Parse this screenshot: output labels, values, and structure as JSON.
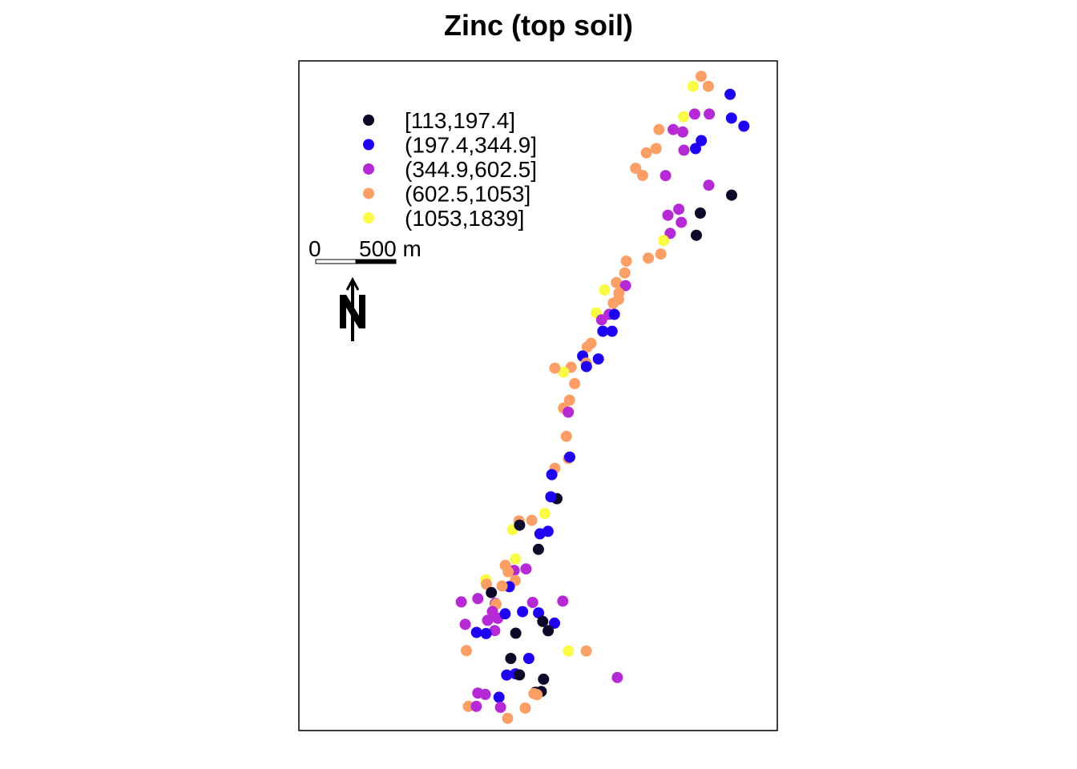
{
  "chart_data": {
    "type": "scatter",
    "title": "Zinc (top soil)",
    "xlim": [
      178460,
      181540
    ],
    "ylim": [
      329620,
      333660
    ],
    "grid": false,
    "legend_position": "top-left",
    "classes": [
      {
        "label": "[113,197.4]",
        "color": "#0d0829"
      },
      {
        "label": "(197.4,344.9]",
        "color": "#1f00f0"
      },
      {
        "label": "(344.9,602.5]",
        "color": "#b62ad6"
      },
      {
        "label": "(602.5,1053]",
        "color": "#fb9f66"
      },
      {
        "label": "(1053,1839]",
        "color": "#fafb45"
      }
    ],
    "scale_bar": {
      "label_start": "0",
      "label_end": "500 m"
    },
    "north_arrow": {
      "label": "N"
    },
    "points": [
      {
        "x": 181050,
        "y": 333567,
        "c": 3
      },
      {
        "x": 180998,
        "y": 333507,
        "c": 4
      },
      {
        "x": 181096,
        "y": 333507,
        "c": 3
      },
      {
        "x": 181236,
        "y": 333458,
        "c": 1
      },
      {
        "x": 180937,
        "y": 333323,
        "c": 4
      },
      {
        "x": 181008,
        "y": 333339,
        "c": 2
      },
      {
        "x": 181102,
        "y": 333339,
        "c": 2
      },
      {
        "x": 181245,
        "y": 333315,
        "c": 1
      },
      {
        "x": 181325,
        "y": 333266,
        "c": 1
      },
      {
        "x": 180778,
        "y": 333246,
        "c": 3
      },
      {
        "x": 180870,
        "y": 333246,
        "c": 2
      },
      {
        "x": 180931,
        "y": 333231,
        "c": 2
      },
      {
        "x": 181051,
        "y": 333179,
        "c": 1
      },
      {
        "x": 181014,
        "y": 333131,
        "c": 1
      },
      {
        "x": 180760,
        "y": 333131,
        "c": 3
      },
      {
        "x": 180939,
        "y": 333121,
        "c": 2
      },
      {
        "x": 180697,
        "y": 333105,
        "c": 3
      },
      {
        "x": 180628,
        "y": 333012,
        "c": 3
      },
      {
        "x": 180673,
        "y": 332969,
        "c": 3
      },
      {
        "x": 180821,
        "y": 332968,
        "c": 2
      },
      {
        "x": 181099,
        "y": 332910,
        "c": 2
      },
      {
        "x": 181246,
        "y": 332850,
        "c": 0
      },
      {
        "x": 180906,
        "y": 332765,
        "c": 2
      },
      {
        "x": 181044,
        "y": 332742,
        "c": 0
      },
      {
        "x": 180836,
        "y": 332729,
        "c": 2
      },
      {
        "x": 180922,
        "y": 332686,
        "c": 2
      },
      {
        "x": 180850,
        "y": 332619,
        "c": 2
      },
      {
        "x": 181019,
        "y": 332608,
        "c": 0
      },
      {
        "x": 180808,
        "y": 332576,
        "c": 4
      },
      {
        "x": 180790,
        "y": 332495,
        "c": 3
      },
      {
        "x": 180710,
        "y": 332470,
        "c": 3
      },
      {
        "x": 180568,
        "y": 332452,
        "c": 3
      },
      {
        "x": 180558,
        "y": 332381,
        "c": 3
      },
      {
        "x": 180504,
        "y": 332323,
        "c": 3
      },
      {
        "x": 180563,
        "y": 332304,
        "c": 2
      },
      {
        "x": 180427,
        "y": 332278,
        "c": 4
      },
      {
        "x": 180520,
        "y": 332259,
        "c": 3
      },
      {
        "x": 180518,
        "y": 332221,
        "c": 3
      },
      {
        "x": 180484,
        "y": 332198,
        "c": 3
      },
      {
        "x": 180457,
        "y": 332131,
        "c": 2
      },
      {
        "x": 180374,
        "y": 332140,
        "c": 4
      },
      {
        "x": 180491,
        "y": 332131,
        "c": 1
      },
      {
        "x": 180409,
        "y": 332098,
        "c": 2
      },
      {
        "x": 180417,
        "y": 332029,
        "c": 1
      },
      {
        "x": 180476,
        "y": 332029,
        "c": 1
      },
      {
        "x": 180341,
        "y": 331956,
        "c": 3
      },
      {
        "x": 180316,
        "y": 331934,
        "c": 3
      },
      {
        "x": 180287,
        "y": 331879,
        "c": 1
      },
      {
        "x": 180388,
        "y": 331862,
        "c": 1
      },
      {
        "x": 180310,
        "y": 331836,
        "c": 3
      },
      {
        "x": 180212,
        "y": 331812,
        "c": 3
      },
      {
        "x": 180311,
        "y": 331816,
        "c": 1
      },
      {
        "x": 180163,
        "y": 331782,
        "c": 4
      },
      {
        "x": 180108,
        "y": 331806,
        "c": 3
      },
      {
        "x": 180236,
        "y": 331713,
        "c": 3
      },
      {
        "x": 180203,
        "y": 331613,
        "c": 3
      },
      {
        "x": 180164,
        "y": 331565,
        "c": 3
      },
      {
        "x": 180194,
        "y": 331541,
        "c": 2
      },
      {
        "x": 180182,
        "y": 331395,
        "c": 3
      },
      {
        "x": 180195,
        "y": 331261,
        "c": 3
      },
      {
        "x": 180204,
        "y": 331270,
        "c": 1
      },
      {
        "x": 180108,
        "y": 331202,
        "c": 3
      },
      {
        "x": 180088,
        "y": 331164,
        "c": 1
      },
      {
        "x": 180121,
        "y": 331019,
        "c": 0
      },
      {
        "x": 180082,
        "y": 331030,
        "c": 1
      },
      {
        "x": 180043,
        "y": 330930,
        "c": 4
      },
      {
        "x": 179959,
        "y": 330888,
        "c": 3
      },
      {
        "x": 179877,
        "y": 330885,
        "c": 3
      },
      {
        "x": 179836,
        "y": 330832,
        "c": 4
      },
      {
        "x": 180012,
        "y": 330807,
        "c": 1
      },
      {
        "x": 180064,
        "y": 330822,
        "c": 1
      },
      {
        "x": 179881,
        "y": 330859,
        "c": 0
      },
      {
        "x": 180002,
        "y": 330713,
        "c": 0
      },
      {
        "x": 179855,
        "y": 330655,
        "c": 4
      },
      {
        "x": 179846,
        "y": 330586,
        "c": 2
      },
      {
        "x": 179922,
        "y": 330595,
        "c": 2
      },
      {
        "x": 179789,
        "y": 330617,
        "c": 3
      },
      {
        "x": 179807,
        "y": 330578,
        "c": 3
      },
      {
        "x": 179853,
        "y": 330525,
        "c": 3
      },
      {
        "x": 179815,
        "y": 330488,
        "c": 1
      },
      {
        "x": 179768,
        "y": 330492,
        "c": 3
      },
      {
        "x": 179663,
        "y": 330529,
        "c": 4
      },
      {
        "x": 179668,
        "y": 330503,
        "c": 3
      },
      {
        "x": 179612,
        "y": 330416,
        "c": 2
      },
      {
        "x": 179699,
        "y": 330452,
        "c": 0
      },
      {
        "x": 179724,
        "y": 330387,
        "c": 2
      },
      {
        "x": 179729,
        "y": 330382,
        "c": 3
      },
      {
        "x": 179706,
        "y": 330338,
        "c": 2
      },
      {
        "x": 179740,
        "y": 330297,
        "c": 2
      },
      {
        "x": 179675,
        "y": 330285,
        "c": 2
      },
      {
        "x": 179531,
        "y": 330261,
        "c": 2
      },
      {
        "x": 179505,
        "y": 330396,
        "c": 2
      },
      {
        "x": 179721,
        "y": 330223,
        "c": 2
      },
      {
        "x": 179788,
        "y": 330324,
        "c": 1
      },
      {
        "x": 179604,
        "y": 330212,
        "c": 1
      },
      {
        "x": 179665,
        "y": 330205,
        "c": 1
      },
      {
        "x": 179856,
        "y": 330207,
        "c": 0
      },
      {
        "x": 179900,
        "y": 330337,
        "c": 1
      },
      {
        "x": 179965,
        "y": 330393,
        "c": 2
      },
      {
        "x": 180003,
        "y": 330330,
        "c": 1
      },
      {
        "x": 180106,
        "y": 330268,
        "c": 1
      },
      {
        "x": 180030,
        "y": 330278,
        "c": 0
      },
      {
        "x": 180065,
        "y": 330222,
        "c": 0
      },
      {
        "x": 180159,
        "y": 330401,
        "c": 2
      },
      {
        "x": 179824,
        "y": 330055,
        "c": 0
      },
      {
        "x": 179940,
        "y": 330055,
        "c": 1
      },
      {
        "x": 179798,
        "y": 329955,
        "c": 1
      },
      {
        "x": 179854,
        "y": 329962,
        "c": 1
      },
      {
        "x": 180035,
        "y": 329930,
        "c": 0
      },
      {
        "x": 179880,
        "y": 329956,
        "c": 0
      },
      {
        "x": 179983,
        "y": 329851,
        "c": 0
      },
      {
        "x": 180020,
        "y": 329856,
        "c": 0
      },
      {
        "x": 179748,
        "y": 329821,
        "c": 1
      },
      {
        "x": 179758,
        "y": 329760,
        "c": 2
      },
      {
        "x": 179973,
        "y": 329843,
        "c": 3
      },
      {
        "x": 179993,
        "y": 329837,
        "c": 3
      },
      {
        "x": 179917,
        "y": 329756,
        "c": 3
      },
      {
        "x": 179804,
        "y": 329694,
        "c": 3
      },
      {
        "x": 179660,
        "y": 329838,
        "c": 2
      },
      {
        "x": 179612,
        "y": 329846,
        "c": 2
      },
      {
        "x": 179551,
        "y": 329766,
        "c": 3
      },
      {
        "x": 179602,
        "y": 329766,
        "c": 2
      },
      {
        "x": 180195,
        "y": 330100,
        "c": 4
      },
      {
        "x": 180310,
        "y": 330100,
        "c": 3
      },
      {
        "x": 180510,
        "y": 329940,
        "c": 2
      },
      {
        "x": 179538,
        "y": 330102,
        "c": 3
      }
    ]
  }
}
